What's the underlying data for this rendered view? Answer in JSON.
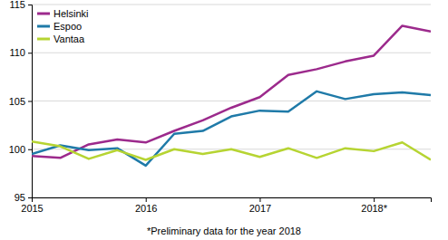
{
  "chart_data": {
    "type": "line",
    "categories": [
      "2015",
      null,
      null,
      null,
      "2016",
      null,
      null,
      null,
      "2017",
      null,
      null,
      null,
      "2018*",
      null,
      null
    ],
    "series": [
      {
        "name": "Helsinki",
        "color": "#9c2a8c",
        "values": [
          99.3,
          99.1,
          100.5,
          101.0,
          100.7,
          101.9,
          103.0,
          104.3,
          105.4,
          107.7,
          108.3,
          109.1,
          109.7,
          112.8,
          112.2
        ]
      },
      {
        "name": "Espoo",
        "color": "#1f7aa8",
        "values": [
          99.5,
          100.4,
          99.9,
          100.1,
          98.3,
          101.6,
          101.9,
          103.4,
          104.0,
          103.9,
          106.0,
          105.2,
          105.7,
          105.9,
          105.6
        ]
      },
      {
        "name": "Vantaa",
        "color": "#b6d432",
        "values": [
          100.8,
          100.3,
          99.0,
          99.9,
          98.9,
          100.0,
          99.5,
          100.0,
          99.2,
          100.1,
          99.1,
          100.1,
          99.8,
          100.7,
          98.9
        ]
      }
    ],
    "ylim": [
      95,
      115
    ],
    "yticks": [
      95,
      100,
      105,
      110,
      115
    ],
    "grid": true,
    "legend": "top-left",
    "annotations": [
      "*Preliminary data for the year 2018"
    ]
  }
}
